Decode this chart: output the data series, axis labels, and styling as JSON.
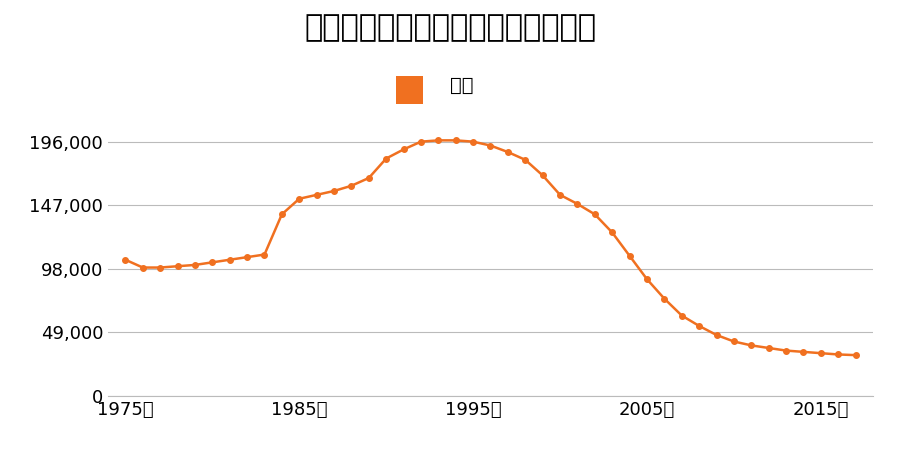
{
  "title": "北海道滝川市本町５番４の地価推移",
  "legend_label": "価格",
  "line_color": "#F07020",
  "marker_color": "#F07020",
  "background_color": "#ffffff",
  "years": [
    1975,
    1976,
    1977,
    1978,
    1979,
    1980,
    1981,
    1982,
    1983,
    1984,
    1985,
    1986,
    1987,
    1988,
    1989,
    1990,
    1991,
    1992,
    1993,
    1994,
    1995,
    1996,
    1997,
    1998,
    1999,
    2000,
    2001,
    2002,
    2003,
    2004,
    2005,
    2006,
    2007,
    2008,
    2009,
    2010,
    2011,
    2012,
    2013,
    2014,
    2015,
    2016,
    2017
  ],
  "values": [
    105000,
    99000,
    99000,
    100000,
    101000,
    103000,
    105000,
    107000,
    109000,
    140000,
    152000,
    155000,
    158000,
    162000,
    168000,
    183000,
    190000,
    196000,
    197000,
    197000,
    196000,
    193000,
    188000,
    182000,
    170000,
    155000,
    148000,
    140000,
    126000,
    108000,
    90000,
    75000,
    62000,
    54000,
    47000,
    42000,
    39000,
    37000,
    35000,
    34000,
    33000,
    32000,
    31500
  ],
  "yticks": [
    0,
    49000,
    98000,
    147000,
    196000
  ],
  "ytick_labels": [
    "0",
    "49,000",
    "98,000",
    "147,000",
    "196,000"
  ],
  "xticks": [
    1975,
    1985,
    1995,
    2005,
    2015
  ],
  "xtick_labels": [
    "1975年",
    "1985年",
    "1995年",
    "2005年",
    "2015年"
  ],
  "ylim": [
    0,
    215000
  ],
  "xlim": [
    1974,
    2018
  ],
  "grid_color": "#bbbbbb",
  "title_fontsize": 22,
  "tick_fontsize": 13,
  "legend_fontsize": 14
}
